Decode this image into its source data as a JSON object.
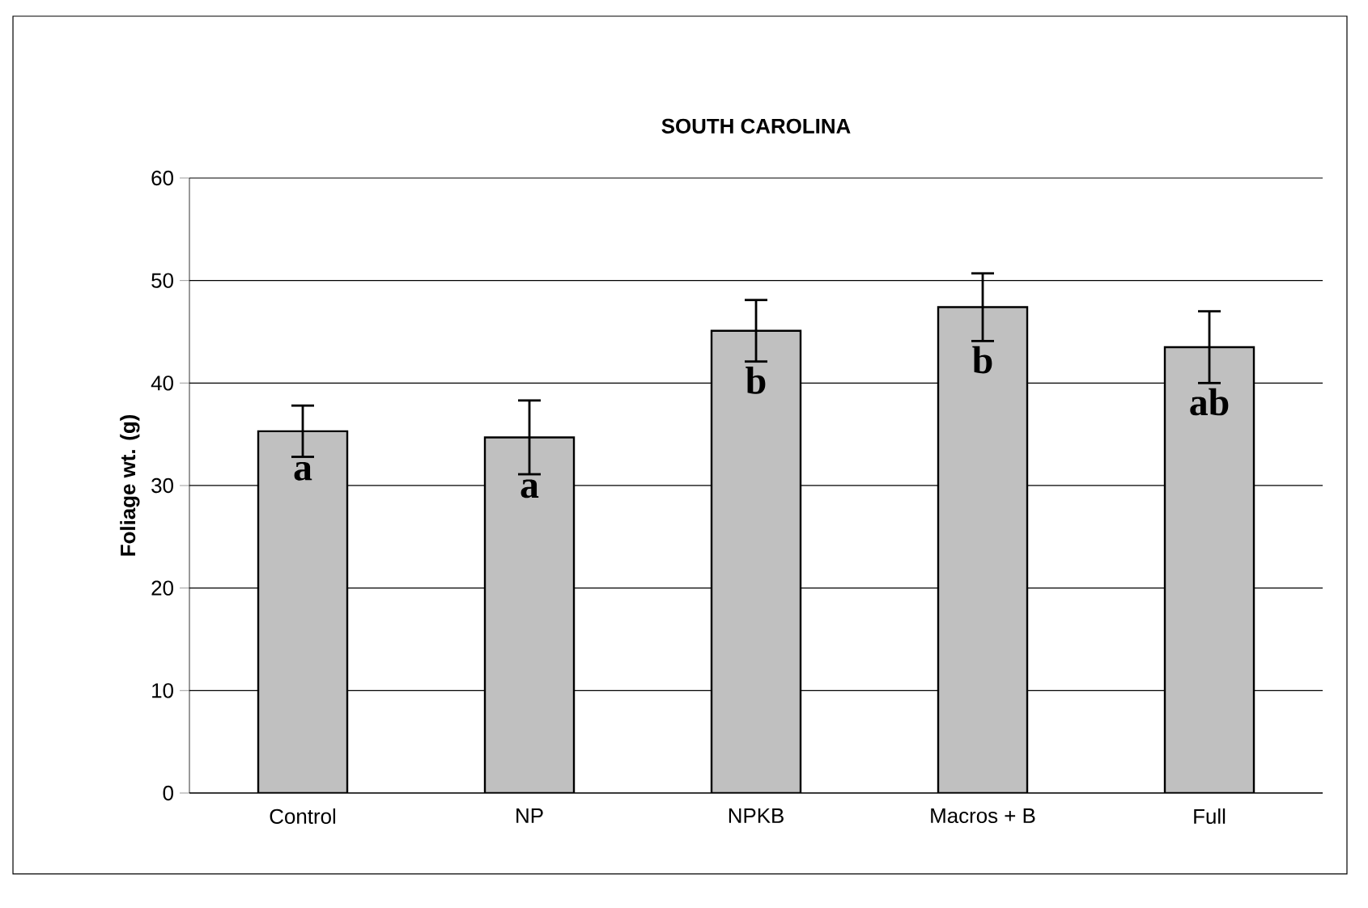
{
  "chart_data": {
    "type": "bar",
    "title": "SOUTH CAROLINA",
    "ylabel": "Foliage wt. (g)",
    "categories": [
      "Control",
      "NP",
      "NPKB",
      "Macros + B",
      "Full"
    ],
    "values": [
      35.3,
      34.7,
      45.1,
      47.4,
      43.5
    ],
    "errors": [
      2.5,
      3.6,
      3.0,
      3.3,
      3.5
    ],
    "color": "#c0c0c0",
    "ylim": [
      0,
      60
    ],
    "yticks": [
      0,
      10,
      20,
      30,
      40,
      50,
      60
    ],
    "grid": "y",
    "annotations": [
      "a",
      "a",
      "b",
      "b",
      "ab"
    ]
  }
}
